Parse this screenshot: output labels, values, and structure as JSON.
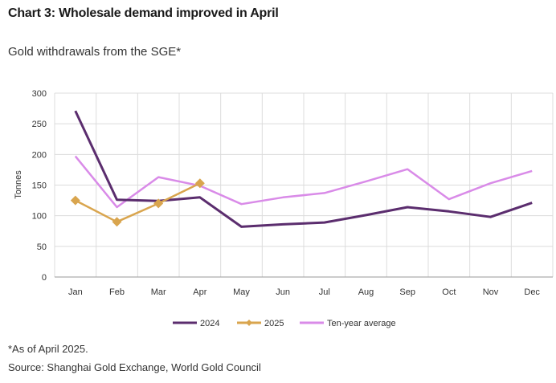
{
  "chart_data": {
    "type": "line",
    "title": "Chart 3: Wholesale demand improved in April",
    "subtitle": "Gold withdrawals from the SGE*",
    "xlabel": "",
    "ylabel": "Tonnes",
    "ylim": [
      0,
      300
    ],
    "yticks": [
      0,
      50,
      100,
      150,
      200,
      250,
      300
    ],
    "grid": true,
    "categories": [
      "Jan",
      "Feb",
      "Mar",
      "Apr",
      "May",
      "Jun",
      "Jul",
      "Aug",
      "Sep",
      "Oct",
      "Nov",
      "Dec"
    ],
    "series": [
      {
        "name": "2024",
        "color": "#5b2d6e",
        "marker": "none",
        "values": [
          271,
          126,
          124,
          130,
          82,
          86,
          89,
          101,
          114,
          107,
          98,
          121
        ]
      },
      {
        "name": "2025",
        "color": "#d9a54e",
        "marker": "diamond",
        "values": [
          125,
          90,
          120,
          153,
          null,
          null,
          null,
          null,
          null,
          null,
          null,
          null
        ]
      },
      {
        "name": "Ten-year average",
        "color": "#d98be8",
        "marker": "none",
        "values": [
          197,
          114,
          163,
          149,
          119,
          130,
          137,
          156,
          176,
          127,
          153,
          173
        ]
      }
    ],
    "legend_position": "bottom"
  },
  "footnote": "*As of April 2025.",
  "source": "Source: Shanghai Gold Exchange, World Gold Council"
}
